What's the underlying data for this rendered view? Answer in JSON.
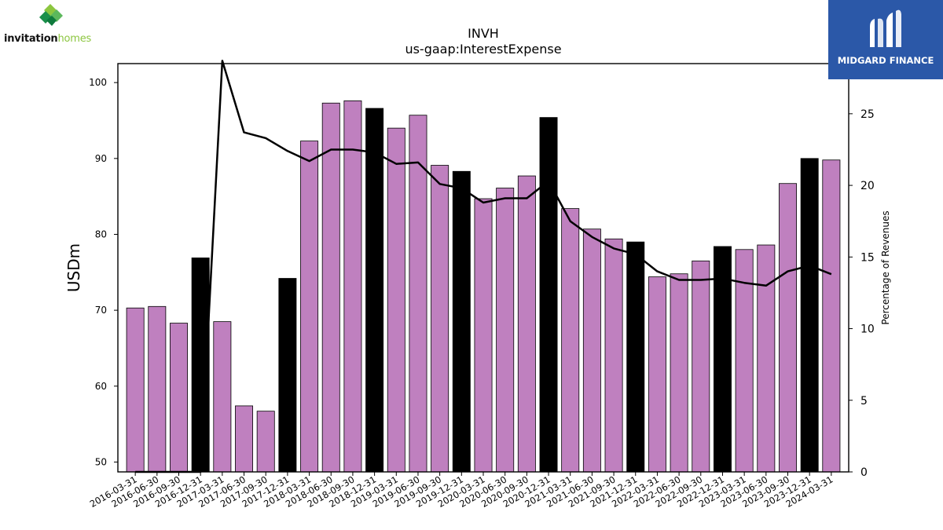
{
  "header": {
    "left_logo_part1": "invitation",
    "left_logo_part2": "homes",
    "right_logo_text": "MIDGARD FINANCE"
  },
  "colors": {
    "bar_default": "#bf80bf",
    "bar_highlight": "#000000",
    "line": "#000000",
    "right_logo_bg": "#2b58a8",
    "left_logo_green": "#8cc63f"
  },
  "chart_data": {
    "type": "bar",
    "title": "INVH",
    "subtitle": "us-gaap:InterestExpense",
    "ylabel": "USDm",
    "y2label": "Percentage of Revenues",
    "ylim": [
      48.7,
      102.5
    ],
    "y2lim": [
      0,
      28.5
    ],
    "yticks": [
      50,
      60,
      70,
      80,
      90,
      100
    ],
    "y2ticks": [
      0,
      5,
      10,
      15,
      20,
      25
    ],
    "grid": false,
    "categories": [
      "2016-03-31",
      "2016-06-30",
      "2016-09-30",
      "2016-12-31",
      "2017-03-31",
      "2017-06-30",
      "2017-09-30",
      "2017-12-31",
      "2018-03-31",
      "2018-06-30",
      "2018-09-30",
      "2018-12-31",
      "2019-03-31",
      "2019-06-30",
      "2019-09-30",
      "2019-12-31",
      "2020-03-31",
      "2020-06-30",
      "2020-09-30",
      "2020-12-31",
      "2021-03-31",
      "2021-06-30",
      "2021-09-30",
      "2021-12-31",
      "2022-03-31",
      "2022-06-30",
      "2022-09-30",
      "2022-12-31",
      "2023-03-31",
      "2023-06-30",
      "2023-09-30",
      "2023-12-31",
      "2024-03-31"
    ],
    "series": [
      {
        "kind": "bar",
        "axis": "left",
        "values": [
          70.3,
          70.5,
          68.3,
          76.9,
          68.5,
          57.4,
          56.7,
          74.2,
          92.3,
          97.3,
          97.6,
          96.6,
          94.0,
          95.7,
          89.1,
          88.3,
          84.7,
          86.1,
          87.7,
          95.4,
          83.4,
          80.7,
          79.4,
          79.0,
          74.4,
          74.8,
          76.5,
          78.4,
          78.0,
          78.6,
          86.7,
          90.0,
          89.8
        ],
        "highlight": [
          false,
          false,
          false,
          true,
          false,
          false,
          false,
          true,
          false,
          false,
          false,
          true,
          false,
          false,
          false,
          true,
          false,
          false,
          false,
          true,
          false,
          false,
          false,
          true,
          false,
          false,
          false,
          true,
          false,
          false,
          false,
          true,
          false
        ]
      },
      {
        "kind": "line",
        "axis": "right",
        "values": [
          0.0,
          0.0,
          0.0,
          0.0,
          28.7,
          23.7,
          23.3,
          22.4,
          21.7,
          22.5,
          22.5,
          22.3,
          21.5,
          21.6,
          20.1,
          19.8,
          18.8,
          19.1,
          19.1,
          20.3,
          17.5,
          16.4,
          15.6,
          15.2,
          14.0,
          13.4,
          13.4,
          13.5,
          13.2,
          13.0,
          14.0,
          14.4,
          13.8
        ]
      }
    ]
  }
}
